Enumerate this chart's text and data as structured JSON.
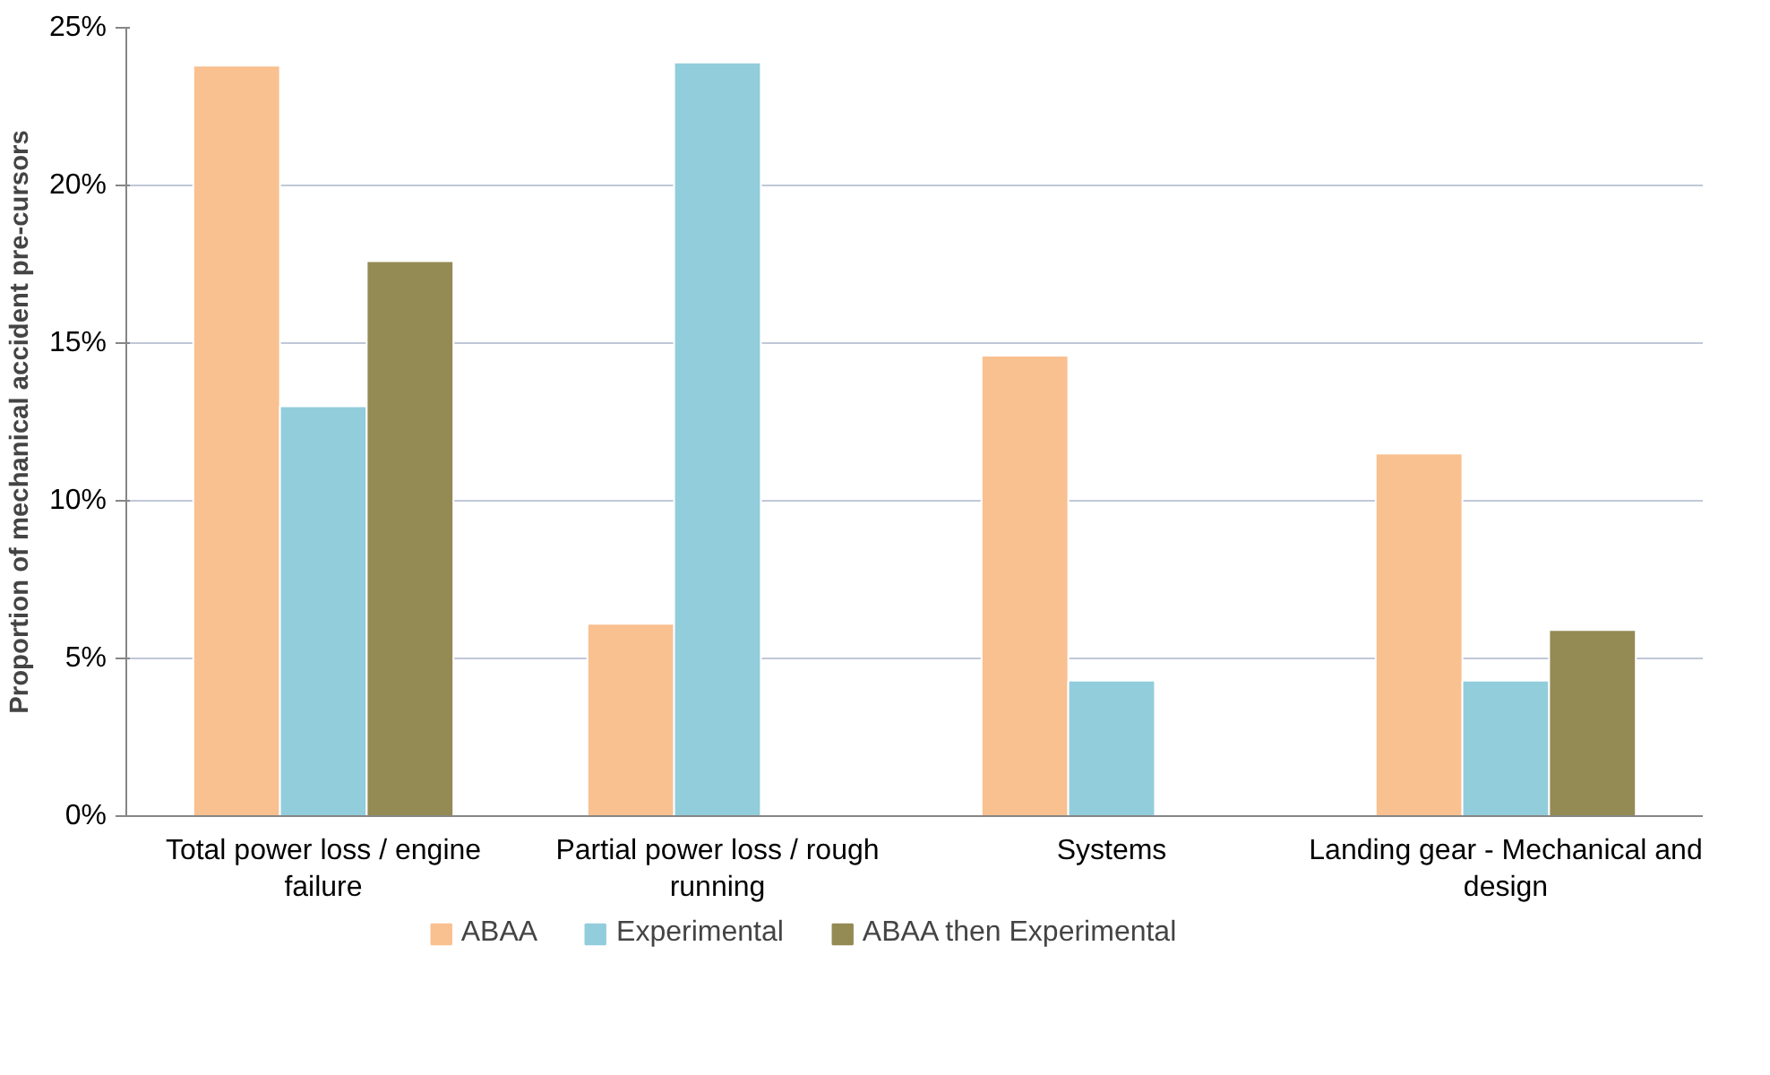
{
  "chart_data": {
    "type": "bar",
    "ylabel": "Proportion of mechanical accident pre-cursors",
    "categories": [
      "Total power loss / engine failure",
      "Partial power loss / rough running",
      "Systems",
      "Landing gear - Mechanical and design"
    ],
    "series": [
      {
        "name": "ABAA",
        "color": "#f9c090",
        "values": [
          23.8,
          6.1,
          14.6,
          11.5
        ]
      },
      {
        "name": "Experimental",
        "color": "#92cddc",
        "values": [
          13.0,
          23.9,
          4.3,
          4.3
        ]
      },
      {
        "name": "ABAA then Experimental",
        "color": "#948a54",
        "values": [
          17.6,
          null,
          null,
          5.9
        ]
      }
    ],
    "ylim": [
      0,
      25
    ],
    "yticks": [
      {
        "value": 0,
        "label": "0%"
      },
      {
        "value": 5,
        "label": "5%"
      },
      {
        "value": 10,
        "label": "10%"
      },
      {
        "value": 15,
        "label": "15%"
      },
      {
        "value": 20,
        "label": "20%"
      },
      {
        "value": 25,
        "label": "25%"
      }
    ],
    "grid": "y",
    "legend": "bottom"
  }
}
